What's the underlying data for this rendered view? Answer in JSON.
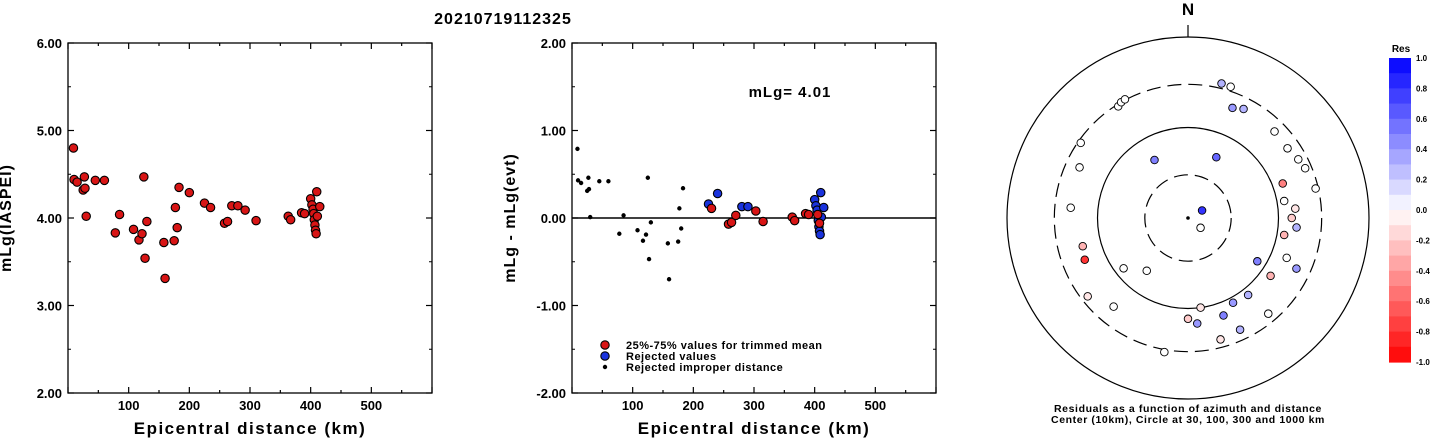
{
  "figure_title": "20210719112325",
  "colors": {
    "trimmed": "#d81515",
    "rejected": "#1a33dd",
    "improper": "#000000",
    "marker_edge": "#000000"
  },
  "chart_data": [
    {
      "type": "scatter",
      "name": "mLg-vs-distance",
      "xlabel": "Epicentral distance (km)",
      "ylabel": "mLg(IASPEI)",
      "xlim": [
        0,
        600
      ],
      "ylim": [
        2.0,
        6.0
      ],
      "x_ticks": [
        "100",
        "200",
        "300",
        "400",
        "500"
      ],
      "y_ticks": [
        "2.00",
        "3.00",
        "4.00",
        "5.00",
        "6.00"
      ],
      "series": [
        {
          "points": [
            [
              9,
              4.8
            ],
            [
              10,
              4.44
            ],
            [
              15,
              4.41
            ],
            [
              25,
              4.32
            ],
            [
              27,
              4.47
            ],
            [
              28,
              4.34
            ],
            [
              30,
              4.02
            ],
            [
              45,
              4.43
            ],
            [
              60,
              4.43
            ],
            [
              78,
              3.83
            ],
            [
              85,
              4.04
            ],
            [
              108,
              3.87
            ],
            [
              117,
              3.75
            ],
            [
              122,
              3.82
            ],
            [
              125,
              4.47
            ],
            [
              127,
              3.54
            ],
            [
              130,
              3.96
            ],
            [
              158,
              3.72
            ],
            [
              160,
              3.31
            ],
            [
              175,
              3.74
            ],
            [
              177,
              4.12
            ],
            [
              180,
              3.89
            ],
            [
              183,
              4.35
            ],
            [
              200,
              4.29
            ],
            [
              225,
              4.17
            ],
            [
              235,
              4.12
            ],
            [
              258,
              3.94
            ],
            [
              263,
              3.96
            ],
            [
              270,
              4.14
            ],
            [
              280,
              4.14
            ],
            [
              292,
              4.09
            ],
            [
              310,
              3.97
            ],
            [
              363,
              4.02
            ],
            [
              367,
              3.98
            ],
            [
              385,
              4.06
            ],
            [
              390,
              4.05
            ],
            [
              400,
              4.22
            ],
            [
              402,
              4.15
            ],
            [
              404,
              4.1
            ],
            [
              405,
              4.05
            ],
            [
              406,
              3.98
            ],
            [
              407,
              3.92
            ],
            [
              408,
              3.86
            ],
            [
              409,
              3.82
            ],
            [
              410,
              4.3
            ],
            [
              411,
              4.02
            ],
            [
              415,
              4.13
            ]
          ]
        }
      ]
    },
    {
      "type": "scatter",
      "name": "residual-vs-distance",
      "xlabel": "Epicentral distance (km)",
      "ylabel": "mLg - mLg(evt)",
      "xlim": [
        0,
        600
      ],
      "ylim": [
        -2.0,
        2.0
      ],
      "x_ticks": [
        "100",
        "200",
        "300",
        "400",
        "500"
      ],
      "y_ticks": [
        "-2.00",
        "-1.00",
        "0.00",
        "1.00",
        "2.00"
      ],
      "annotation": "mLg= 4.01",
      "reference_line": 0.0,
      "legend": [
        {
          "label": "25%-75% values for trimmed mean",
          "kind": "trimmed"
        },
        {
          "label": "Rejected values",
          "kind": "rejected"
        },
        {
          "label": "Rejected improper distance",
          "kind": "improper"
        }
      ],
      "series": [
        {
          "kind": "improper",
          "points": [
            [
              9,
              0.79
            ],
            [
              10,
              0.43
            ],
            [
              15,
              0.4
            ],
            [
              25,
              0.31
            ],
            [
              27,
              0.46
            ],
            [
              28,
              0.33
            ],
            [
              30,
              0.01
            ],
            [
              45,
              0.42
            ],
            [
              60,
              0.42
            ],
            [
              78,
              -0.18
            ],
            [
              85,
              0.03
            ],
            [
              108,
              -0.14
            ],
            [
              117,
              -0.26
            ],
            [
              122,
              -0.19
            ],
            [
              125,
              0.46
            ],
            [
              127,
              -0.47
            ],
            [
              130,
              -0.05
            ],
            [
              158,
              -0.29
            ],
            [
              160,
              -0.7
            ],
            [
              175,
              -0.27
            ],
            [
              177,
              0.11
            ],
            [
              180,
              -0.12
            ],
            [
              183,
              0.34
            ]
          ]
        },
        {
          "kind": "rejected",
          "points": [
            [
              225,
              0.16
            ],
            [
              240,
              0.28
            ],
            [
              280,
              0.13
            ],
            [
              290,
              0.13
            ],
            [
              400,
              0.21
            ],
            [
              402,
              0.14
            ],
            [
              404,
              0.09
            ],
            [
              406,
              -0.03
            ],
            [
              407,
              -0.1
            ],
            [
              408,
              -0.15
            ],
            [
              409,
              -0.19
            ],
            [
              410,
              0.29
            ],
            [
              411,
              0.01
            ],
            [
              415,
              0.12
            ]
          ]
        },
        {
          "kind": "trimmed",
          "points": [
            [
              230,
              0.11
            ],
            [
              258,
              -0.07
            ],
            [
              263,
              -0.05
            ],
            [
              270,
              0.03
            ],
            [
              303,
              0.08
            ],
            [
              315,
              -0.04
            ],
            [
              363,
              0.01
            ],
            [
              367,
              -0.03
            ],
            [
              385,
              0.05
            ],
            [
              390,
              0.04
            ],
            [
              405,
              0.04
            ],
            [
              408,
              -0.06
            ]
          ]
        }
      ]
    },
    {
      "type": "polar-scatter",
      "name": "residual-azimuth",
      "north_label": "N",
      "caption_line1": "Residuals as a function of azimuth and distance",
      "caption_line2": "Center (10km), Circle at 30, 100, 300 and 1000 km",
      "rings": [
        {
          "distance_km": 30,
          "style": "dashed"
        },
        {
          "distance_km": 100,
          "style": "solid"
        },
        {
          "distance_km": 300,
          "style": "dashed"
        },
        {
          "distance_km": 1000,
          "style": "solid"
        }
      ],
      "colorbar": {
        "title": "Res",
        "ticks": [
          "1.0",
          "0.8",
          "0.6",
          "0.4",
          "0.2",
          "0.0",
          "-0.2",
          "-0.4",
          "-0.6",
          "-0.8",
          "-1.0"
        ]
      },
      "points": [
        {
          "az": 62,
          "dist": 15,
          "res": 0.8
        },
        {
          "az": 128,
          "dist": 15,
          "res": 0.0
        },
        {
          "az": 25,
          "dist": 55,
          "res": 0.6
        },
        {
          "az": 330,
          "dist": 55,
          "res": 0.5
        },
        {
          "az": 218,
          "dist": 55,
          "res": 0.0
        },
        {
          "az": 122,
          "dist": 80,
          "res": 0.5
        },
        {
          "az": 232,
          "dist": 80,
          "res": 0.0
        },
        {
          "az": 22,
          "dist": 205,
          "res": 0.4
        },
        {
          "az": 27,
          "dist": 225,
          "res": 0.3
        },
        {
          "az": 45,
          "dist": 225,
          "res": 0.0
        },
        {
          "az": 55,
          "dist": 220,
          "res": 0.0
        },
        {
          "az": 70,
          "dist": 130,
          "res": -0.5
        },
        {
          "az": 80,
          "dist": 120,
          "res": 0.0
        },
        {
          "az": 62,
          "dist": 240,
          "res": 0.0
        },
        {
          "az": 67,
          "dist": 255,
          "res": 0.0
        },
        {
          "az": 85,
          "dist": 155,
          "res": -0.1
        },
        {
          "az": 90,
          "dist": 140,
          "res": -0.2
        },
        {
          "az": 95,
          "dist": 160,
          "res": 0.3
        },
        {
          "az": 100,
          "dist": 120,
          "res": -0.3
        },
        {
          "az": 77,
          "dist": 280,
          "res": 0.0
        },
        {
          "az": 112,
          "dist": 150,
          "res": 0.0
        },
        {
          "az": 115,
          "dist": 210,
          "res": 0.4
        },
        {
          "az": 125,
          "dist": 130,
          "res": -0.3
        },
        {
          "az": 152,
          "dist": 115,
          "res": 0.4
        },
        {
          "az": 160,
          "dist": 140,
          "res": 0.5
        },
        {
          "az": 172,
          "dist": 100,
          "res": -0.1
        },
        {
          "az": 180,
          "dist": 130,
          "res": -0.2
        },
        {
          "az": 175,
          "dist": 148,
          "res": 0.4
        },
        {
          "az": 140,
          "dist": 240,
          "res": 0.0
        },
        {
          "az": 155,
          "dist": 230,
          "res": 0.3
        },
        {
          "az": 190,
          "dist": 320,
          "res": 0.0
        },
        {
          "az": 255,
          "dist": 160,
          "res": -0.3
        },
        {
          "az": 248,
          "dist": 170,
          "res": -0.8
        },
        {
          "az": 275,
          "dist": 200,
          "res": 0.0
        },
        {
          "az": 295,
          "dist": 210,
          "res": 0.0
        },
        {
          "az": 328,
          "dist": 285,
          "res": 0.0
        },
        {
          "az": 330,
          "dist": 300,
          "res": 0.0
        },
        {
          "az": 332,
          "dist": 305,
          "res": 0.0
        },
        {
          "az": 305,
          "dist": 280,
          "res": 0.0
        },
        {
          "az": 14,
          "dist": 340,
          "res": 0.3
        },
        {
          "az": 18,
          "dist": 335,
          "res": 0.0
        },
        {
          "az": 220,
          "dist": 190,
          "res": 0.0
        },
        {
          "az": 165,
          "dist": 245,
          "res": -0.1
        },
        {
          "az": 142,
          "dist": 120,
          "res": 0.3
        },
        {
          "az": 232,
          "dist": 255,
          "res": -0.1
        }
      ]
    }
  ]
}
